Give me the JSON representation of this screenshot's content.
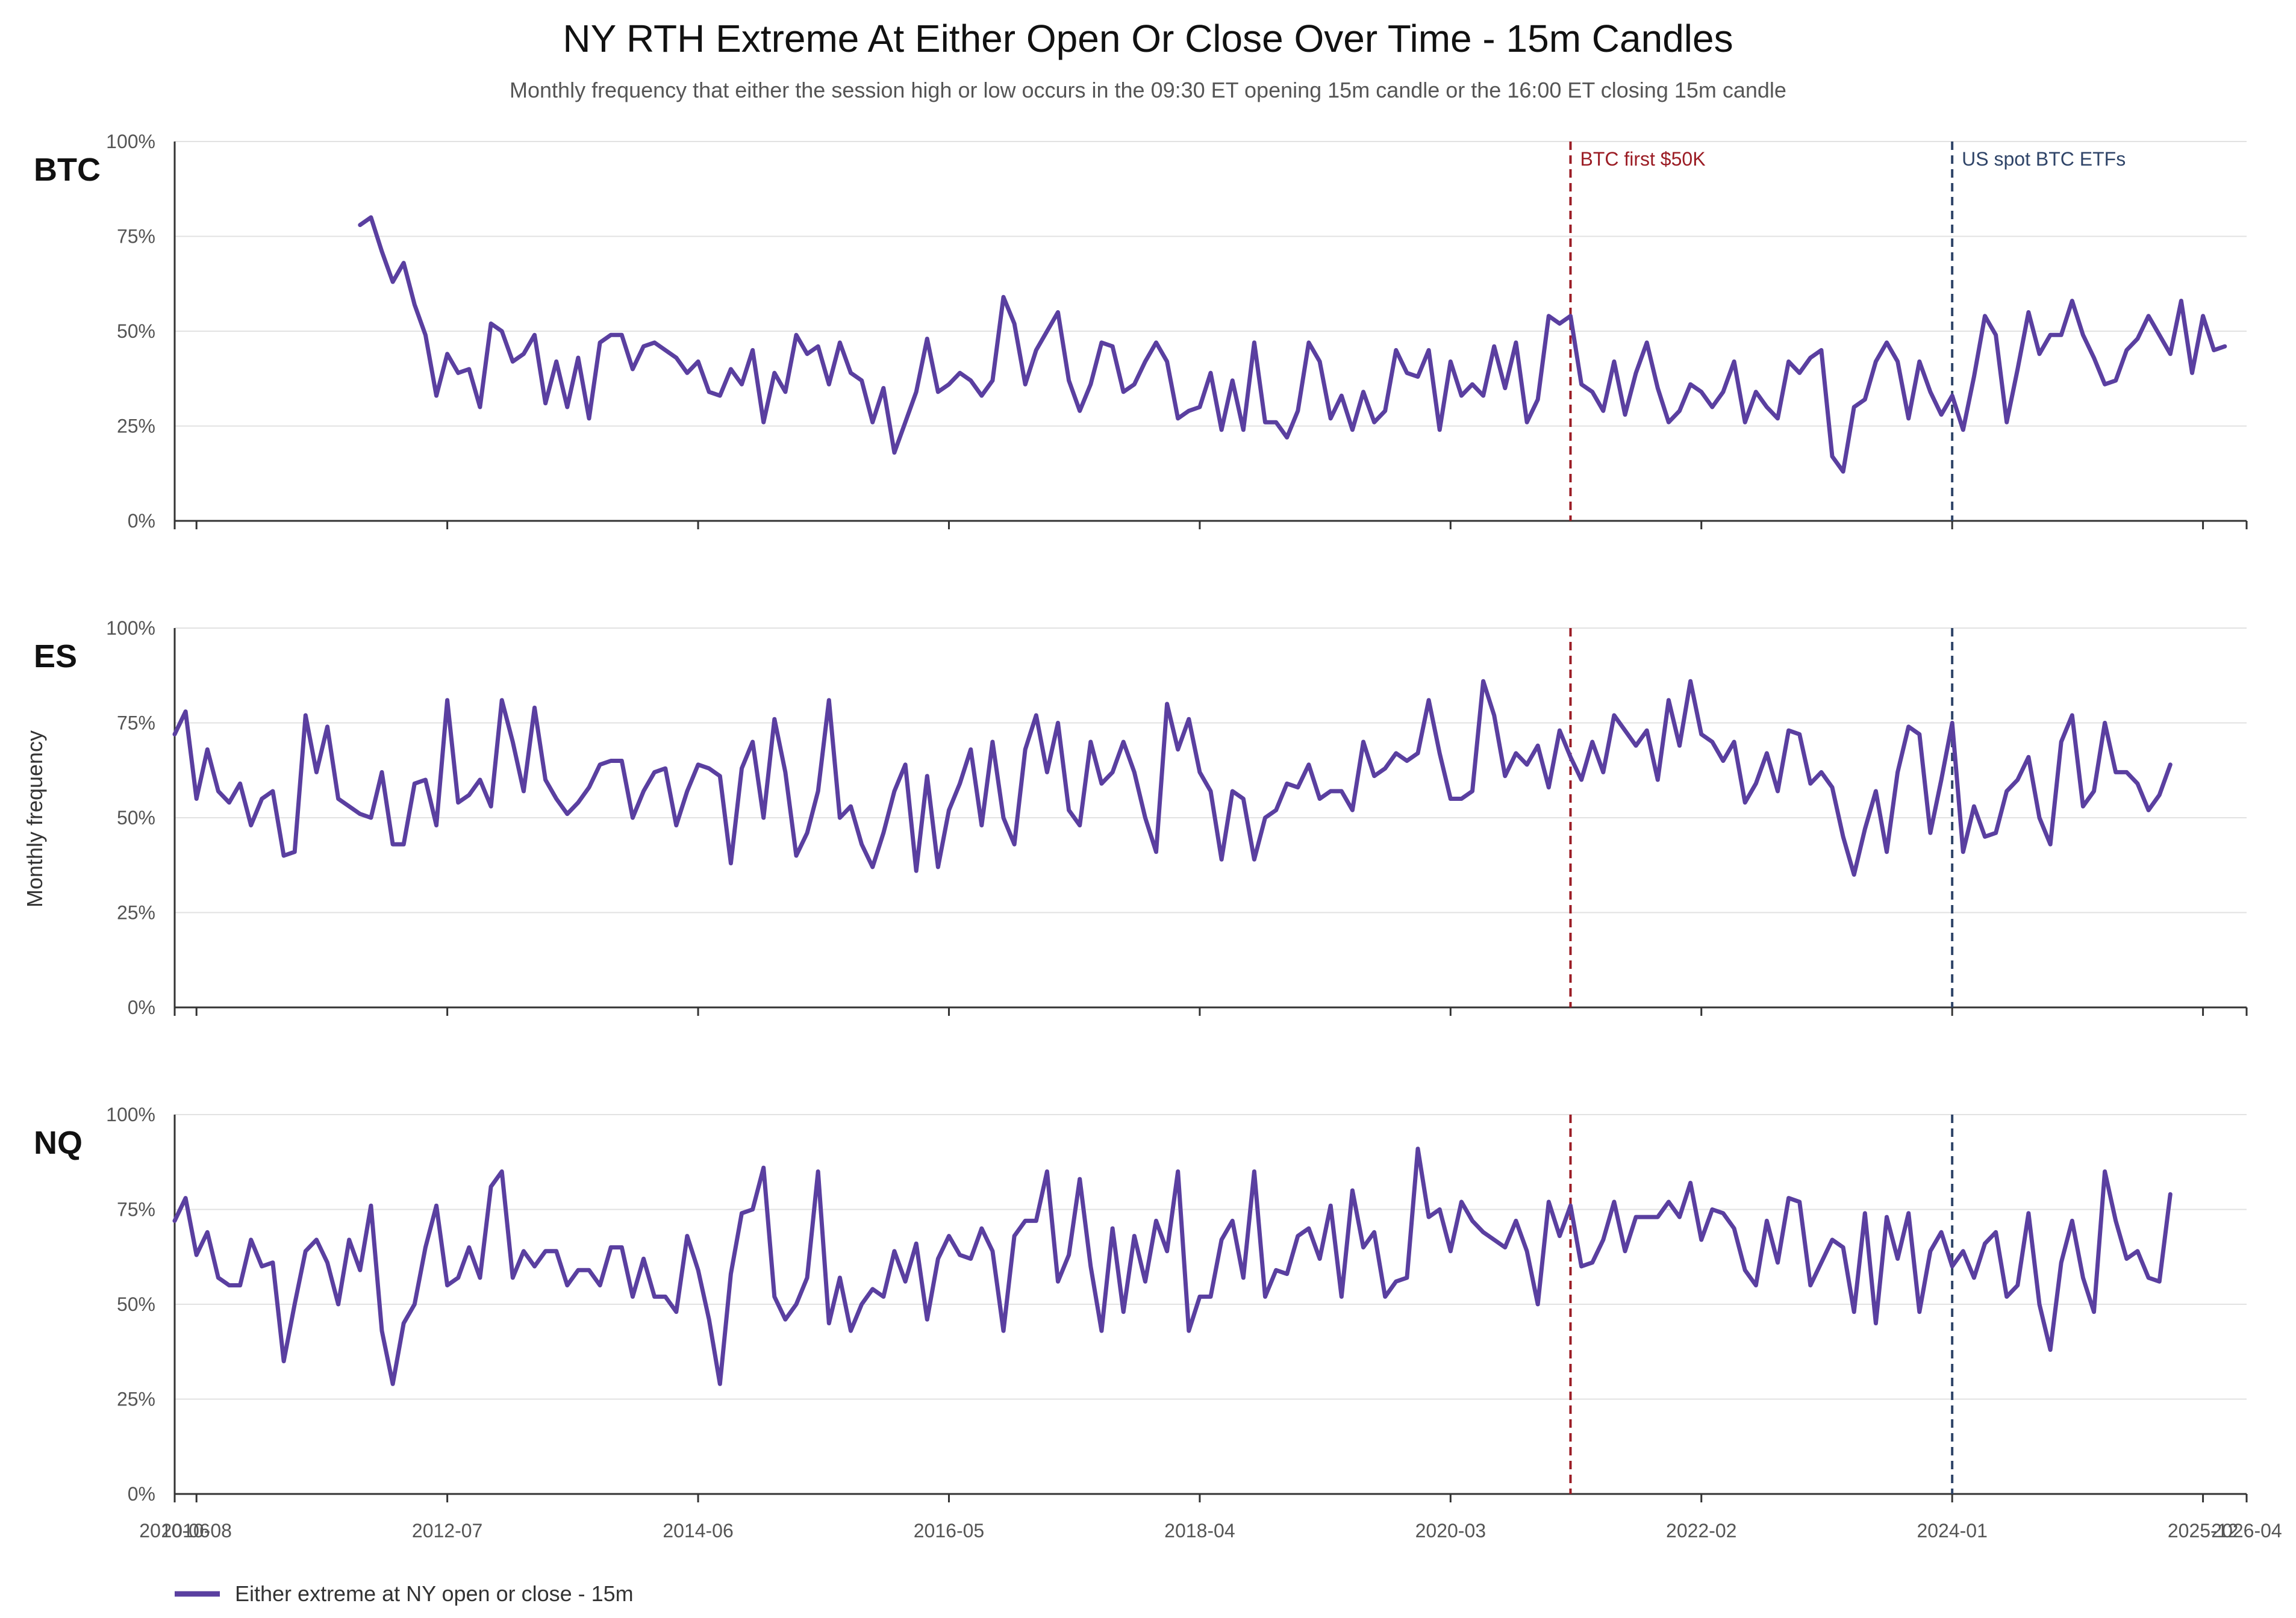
{
  "chart_data": {
    "type": "line",
    "title": "NY RTH Extreme At Either Open Or Close Over Time - 15m Candles",
    "subtitle": "Monthly frequency that either the session high or low occurs in the 09:30 ET opening 15m candle or the 16:00 ET closing 15m candle",
    "ylabel": "Monthly frequency",
    "ylim": [
      0,
      100
    ],
    "yticks": [
      0,
      25,
      50,
      75,
      100
    ],
    "ytick_labels": [
      "0%",
      "25%",
      "50%",
      "75%",
      "100%"
    ],
    "x_range": [
      "2010-06",
      "2026-04"
    ],
    "xtick_labels": [
      "2010-06",
      "2010-08",
      "2012-07",
      "2014-06",
      "2016-05",
      "2018-04",
      "2020-03",
      "2022-02",
      "2024-01",
      "2025-12",
      "2026-04"
    ],
    "grid": true,
    "legend": {
      "placement": "bottom-left",
      "label": "Either extreme at NY open or close - 15m",
      "color": "#5a3fa0"
    },
    "line_color": "#5a3fa0",
    "events": [
      {
        "date": "2021-02",
        "label": "BTC first $50K",
        "color": "#9b1c24"
      },
      {
        "date": "2024-01",
        "label": "US spot BTC ETFs",
        "color": "#2f4468"
      }
    ],
    "panels": [
      {
        "label": "BTC",
        "start": "2011-11",
        "values": [
          78,
          80,
          71,
          63,
          68,
          57,
          49,
          33,
          44,
          39,
          40,
          30,
          52,
          50,
          42,
          44,
          49,
          31,
          42,
          30,
          43,
          27,
          47,
          49,
          49,
          40,
          46,
          47,
          45,
          43,
          39,
          42,
          34,
          33,
          40,
          36,
          45,
          26,
          39,
          34,
          49,
          44,
          46,
          36,
          47,
          39,
          37,
          26,
          35,
          18,
          26,
          34,
          48,
          34,
          36,
          39,
          37,
          33,
          37,
          59,
          52,
          36,
          45,
          50,
          55,
          37,
          29,
          36,
          47,
          46,
          34,
          36,
          42,
          47,
          42,
          27,
          29,
          30,
          39,
          24,
          37,
          24,
          47,
          26,
          26,
          22,
          29,
          47,
          42,
          27,
          33,
          24,
          34,
          26,
          29,
          45,
          39,
          38,
          45,
          24,
          42,
          33,
          36,
          33,
          46,
          35,
          47,
          26,
          32,
          54,
          52,
          54,
          36,
          34,
          29,
          42,
          28,
          39,
          47,
          35,
          26,
          29,
          36,
          34,
          30,
          34,
          42,
          26,
          34,
          30,
          27,
          42,
          39,
          43,
          45,
          17,
          13,
          30,
          32,
          42,
          47,
          42,
          27,
          42,
          34,
          28,
          33,
          24,
          38,
          54,
          49,
          26,
          40,
          55,
          44,
          49,
          49,
          58,
          49,
          43,
          36,
          37,
          45,
          48,
          54,
          49,
          44,
          58,
          39,
          54,
          45,
          46
        ]
      },
      {
        "label": "ES",
        "start": "2010-06",
        "values": [
          72,
          78,
          55,
          68,
          57,
          54,
          59,
          48,
          55,
          57,
          40,
          41,
          77,
          62,
          74,
          55,
          53,
          51,
          50,
          62,
          43,
          43,
          59,
          60,
          48,
          81,
          54,
          56,
          60,
          53,
          81,
          70,
          57,
          79,
          60,
          55,
          51,
          54,
          58,
          64,
          65,
          65,
          50,
          57,
          62,
          63,
          48,
          57,
          64,
          63,
          61,
          38,
          63,
          70,
          50,
          76,
          62,
          40,
          46,
          57,
          81,
          50,
          53,
          43,
          37,
          46,
          57,
          64,
          36,
          61,
          37,
          52,
          59,
          68,
          48,
          70,
          50,
          43,
          68,
          77,
          62,
          75,
          52,
          48,
          70,
          59,
          62,
          70,
          62,
          50,
          41,
          80,
          68,
          76,
          62,
          57,
          39,
          57,
          55,
          39,
          50,
          52,
          59,
          58,
          64,
          55,
          57,
          57,
          52,
          70,
          61,
          63,
          67,
          65,
          67,
          81,
          67,
          55,
          55,
          57,
          86,
          77,
          61,
          67,
          64,
          69,
          58,
          73,
          66,
          60,
          70,
          62,
          77,
          73,
          69,
          73,
          60,
          81,
          69,
          86,
          72,
          70,
          65,
          70,
          54,
          59,
          67,
          57,
          73,
          72,
          59,
          62,
          58,
          45,
          35,
          47,
          57,
          41,
          62,
          74,
          72,
          46,
          60,
          75,
          41,
          53,
          45,
          46,
          57,
          60,
          66,
          50,
          43,
          70,
          77,
          53,
          57,
          75,
          62,
          62,
          59,
          52,
          56,
          64
        ]
      },
      {
        "label": "NQ",
        "start": "2010-06",
        "values": [
          72,
          78,
          63,
          69,
          57,
          55,
          55,
          67,
          60,
          61,
          35,
          50,
          64,
          67,
          61,
          50,
          67,
          59,
          76,
          43,
          29,
          45,
          50,
          65,
          76,
          55,
          57,
          65,
          57,
          81,
          85,
          57,
          64,
          60,
          64,
          64,
          55,
          59,
          59,
          55,
          65,
          65,
          52,
          62,
          52,
          52,
          48,
          68,
          59,
          46,
          29,
          58,
          74,
          75,
          86,
          52,
          46,
          50,
          57,
          85,
          45,
          57,
          43,
          50,
          54,
          52,
          64,
          56,
          66,
          46,
          62,
          68,
          63,
          62,
          70,
          64,
          43,
          68,
          72,
          72,
          85,
          56,
          63,
          83,
          60,
          43,
          70,
          48,
          68,
          56,
          72,
          64,
          85,
          43,
          52,
          52,
          67,
          72,
          57,
          85,
          52,
          59,
          58,
          68,
          70,
          62,
          76,
          52,
          80,
          65,
          69,
          52,
          56,
          57,
          91,
          73,
          75,
          64,
          77,
          72,
          69,
          67,
          65,
          72,
          64,
          50,
          77,
          68,
          76,
          60,
          61,
          67,
          77,
          64,
          73,
          73,
          73,
          77,
          73,
          82,
          67,
          75,
          74,
          70,
          59,
          55,
          72,
          61,
          78,
          77,
          55,
          61,
          67,
          65,
          48,
          74,
          45,
          73,
          62,
          74,
          48,
          64,
          69,
          60,
          64,
          57,
          66,
          69,
          52,
          55,
          74,
          50,
          38,
          61,
          72,
          57,
          48,
          85,
          72,
          62,
          64,
          57,
          56,
          79
        ]
      }
    ]
  }
}
